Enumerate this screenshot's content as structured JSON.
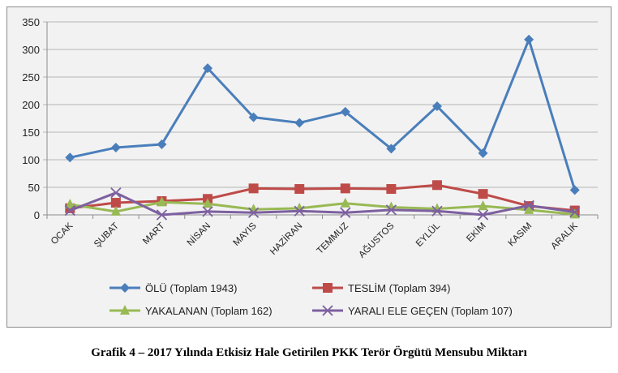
{
  "chart_data": {
    "type": "line",
    "title": "Grafik 4 – 2017 Yılında Etkisiz Hale Getirilen PKK Terör Örgütü Mensubu Miktarı",
    "xlabel": "",
    "ylabel": "",
    "ylim": [
      0,
      350
    ],
    "yticks": [
      0,
      50,
      100,
      150,
      200,
      250,
      300,
      350
    ],
    "grid": true,
    "legend_position": "bottom",
    "categories": [
      "OCAK",
      "ŞUBAT",
      "MART",
      "NİSAN",
      "MAYIS",
      "HAZİRAN",
      "TEMMUZ",
      "AĞUSTOS",
      "EYLÜL",
      "EKİM",
      "KASIM",
      "ARALIK"
    ],
    "series": [
      {
        "name": "ÖLÜ (Toplam 1943)",
        "color": "#4a7ebb",
        "marker": "diamond",
        "values": [
          104,
          122,
          128,
          266,
          177,
          167,
          187,
          120,
          197,
          112,
          318,
          45
        ]
      },
      {
        "name": "TESLİM (Toplam 394)",
        "color": "#be4b48",
        "marker": "square",
        "values": [
          12,
          22,
          25,
          29,
          48,
          47,
          48,
          47,
          54,
          38,
          16,
          8
        ]
      },
      {
        "name": "YAKALANAN (Toplam 162)",
        "color": "#98b954",
        "marker": "triangle",
        "values": [
          19,
          6,
          23,
          20,
          10,
          12,
          21,
          14,
          11,
          16,
          9,
          1
        ]
      },
      {
        "name": "YARALI ELE GEÇEN  (Toplam 107)",
        "color": "#7d60a0",
        "marker": "x",
        "values": [
          8,
          40,
          0,
          6,
          4,
          7,
          4,
          9,
          7,
          0,
          17,
          5
        ]
      }
    ]
  }
}
